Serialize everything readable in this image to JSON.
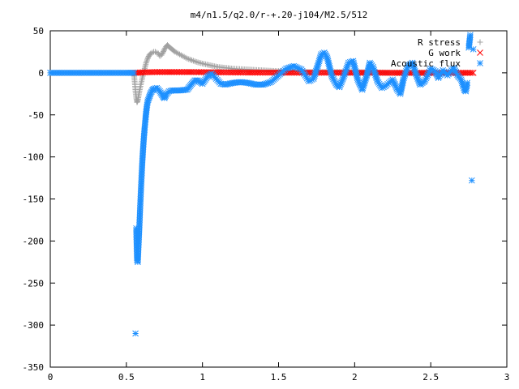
{
  "chart_data": {
    "type": "scatter",
    "title": "m4/n1.5/q2.0/r-+.20-j104/M2.5/512",
    "xlabel": "",
    "ylabel": "",
    "xlim": [
      0,
      3
    ],
    "ylim": [
      -350,
      50
    ],
    "xticks": [
      {
        "value": 0,
        "label": "0"
      },
      {
        "value": 0.5,
        "label": "0.5"
      },
      {
        "value": 1,
        "label": "1"
      },
      {
        "value": 1.5,
        "label": "1.5"
      },
      {
        "value": 2,
        "label": "2"
      },
      {
        "value": 2.5,
        "label": "2.5"
      },
      {
        "value": 3,
        "label": "3"
      }
    ],
    "yticks": [
      {
        "value": 50,
        "label": "50"
      },
      {
        "value": 0,
        "label": "0"
      },
      {
        "value": -50,
        "label": "-50"
      },
      {
        "value": -100,
        "label": "-100"
      },
      {
        "value": -150,
        "label": "-150"
      },
      {
        "value": -200,
        "label": "-200"
      },
      {
        "value": -250,
        "label": "-250"
      },
      {
        "value": -300,
        "label": "-300"
      },
      {
        "value": -350,
        "label": "-350"
      }
    ],
    "grid": false,
    "legend_position": "top-right",
    "series": [
      {
        "name": "R stress",
        "marker": "plus",
        "color": "#a0a0a0",
        "points": [
          [
            0.0,
            0
          ],
          [
            0.1,
            0
          ],
          [
            0.2,
            0
          ],
          [
            0.3,
            0
          ],
          [
            0.4,
            0
          ],
          [
            0.5,
            0
          ],
          [
            0.55,
            0
          ],
          [
            0.56,
            -22
          ],
          [
            0.565,
            -30
          ],
          [
            0.57,
            -35
          ],
          [
            0.575,
            -33
          ],
          [
            0.58,
            -28
          ],
          [
            0.59,
            -18
          ],
          [
            0.6,
            -10
          ],
          [
            0.61,
            -2
          ],
          [
            0.62,
            5
          ],
          [
            0.63,
            12
          ],
          [
            0.64,
            17
          ],
          [
            0.65,
            21
          ],
          [
            0.66,
            23
          ],
          [
            0.67,
            24
          ],
          [
            0.68,
            25
          ],
          [
            0.69,
            25
          ],
          [
            0.7,
            24
          ],
          [
            0.71,
            23
          ],
          [
            0.72,
            20
          ],
          [
            0.73,
            21
          ],
          [
            0.74,
            24
          ],
          [
            0.75,
            28
          ],
          [
            0.76,
            31
          ],
          [
            0.77,
            33
          ],
          [
            0.78,
            31
          ],
          [
            0.8,
            28
          ],
          [
            0.82,
            25
          ],
          [
            0.85,
            22
          ],
          [
            0.88,
            19
          ],
          [
            0.9,
            17
          ],
          [
            0.93,
            15
          ],
          [
            0.96,
            13
          ],
          [
            1.0,
            11
          ],
          [
            1.05,
            9
          ],
          [
            1.1,
            7
          ],
          [
            1.15,
            6
          ],
          [
            1.2,
            5
          ],
          [
            1.3,
            4
          ],
          [
            1.4,
            3
          ],
          [
            1.5,
            2
          ],
          [
            1.6,
            2
          ],
          [
            1.7,
            1
          ],
          [
            1.8,
            1
          ],
          [
            2.0,
            1
          ],
          [
            2.2,
            0
          ],
          [
            2.4,
            0
          ],
          [
            2.6,
            0
          ],
          [
            2.75,
            0
          ]
        ]
      },
      {
        "name": "G work",
        "marker": "cross",
        "color": "#ff0000",
        "points": [
          [
            0.56,
            0
          ],
          [
            0.6,
            0.5
          ],
          [
            0.7,
            1
          ],
          [
            0.8,
            1
          ],
          [
            0.9,
            1
          ],
          [
            1.0,
            0.8
          ],
          [
            1.1,
            0.6
          ],
          [
            1.2,
            0.5
          ],
          [
            1.3,
            0.4
          ],
          [
            1.4,
            0.3
          ],
          [
            1.5,
            0.3
          ],
          [
            1.6,
            0.2
          ],
          [
            1.7,
            0.2
          ],
          [
            1.8,
            0.2
          ],
          [
            1.9,
            0.1
          ],
          [
            2.0,
            0.1
          ],
          [
            2.1,
            0.1
          ],
          [
            2.2,
            0.1
          ],
          [
            2.3,
            0
          ],
          [
            2.4,
            0
          ],
          [
            2.5,
            0
          ],
          [
            2.6,
            0
          ],
          [
            2.7,
            0
          ],
          [
            2.78,
            0
          ]
        ]
      },
      {
        "name": "Acoustic flux",
        "marker": "star",
        "color": "#1e90ff",
        "points": [
          [
            0.0,
            0
          ],
          [
            0.1,
            0
          ],
          [
            0.2,
            0
          ],
          [
            0.3,
            0
          ],
          [
            0.4,
            0
          ],
          [
            0.5,
            0
          ],
          [
            0.55,
            0
          ],
          [
            0.56,
            -310
          ],
          [
            0.565,
            -185
          ],
          [
            0.57,
            -222
          ],
          [
            0.575,
            -225
          ],
          [
            0.58,
            -205
          ],
          [
            0.585,
            -185
          ],
          [
            0.59,
            -163
          ],
          [
            0.595,
            -142
          ],
          [
            0.6,
            -123
          ],
          [
            0.605,
            -105
          ],
          [
            0.61,
            -90
          ],
          [
            0.615,
            -77
          ],
          [
            0.62,
            -66
          ],
          [
            0.625,
            -56
          ],
          [
            0.63,
            -47
          ],
          [
            0.635,
            -40
          ],
          [
            0.64,
            -34
          ],
          [
            0.65,
            -29
          ],
          [
            0.66,
            -24
          ],
          [
            0.67,
            -21
          ],
          [
            0.68,
            -19
          ],
          [
            0.7,
            -18
          ],
          [
            0.72,
            -22
          ],
          [
            0.74,
            -28
          ],
          [
            0.75,
            -30
          ],
          [
            0.76,
            -26
          ],
          [
            0.78,
            -22
          ],
          [
            0.8,
            -21
          ],
          [
            0.85,
            -21
          ],
          [
            0.9,
            -20
          ],
          [
            0.93,
            -13
          ],
          [
            0.95,
            -9
          ],
          [
            0.97,
            -9
          ],
          [
            1.0,
            -13
          ],
          [
            1.03,
            -5
          ],
          [
            1.06,
            -1
          ],
          [
            1.09,
            -7
          ],
          [
            1.12,
            -13
          ],
          [
            1.15,
            -14
          ],
          [
            1.2,
            -12
          ],
          [
            1.25,
            -11
          ],
          [
            1.3,
            -12
          ],
          [
            1.35,
            -14
          ],
          [
            1.4,
            -14
          ],
          [
            1.45,
            -11
          ],
          [
            1.5,
            -3
          ],
          [
            1.55,
            5
          ],
          [
            1.6,
            8
          ],
          [
            1.65,
            4
          ],
          [
            1.7,
            -10
          ],
          [
            1.73,
            -7
          ],
          [
            1.76,
            10
          ],
          [
            1.78,
            22
          ],
          [
            1.8,
            24
          ],
          [
            1.82,
            18
          ],
          [
            1.85,
            -4
          ],
          [
            1.88,
            -14
          ],
          [
            1.9,
            -17
          ],
          [
            1.93,
            -4
          ],
          [
            1.96,
            12
          ],
          [
            1.99,
            14
          ],
          [
            2.02,
            -8
          ],
          [
            2.05,
            -20
          ],
          [
            2.08,
            -3
          ],
          [
            2.1,
            12
          ],
          [
            2.12,
            7
          ],
          [
            2.15,
            -10
          ],
          [
            2.18,
            -18
          ],
          [
            2.2,
            -16
          ],
          [
            2.25,
            -8
          ],
          [
            2.28,
            -20
          ],
          [
            2.3,
            -25
          ],
          [
            2.32,
            -8
          ],
          [
            2.35,
            8
          ],
          [
            2.38,
            12
          ],
          [
            2.4,
            0
          ],
          [
            2.43,
            -14
          ],
          [
            2.46,
            -10
          ],
          [
            2.5,
            5
          ],
          [
            2.53,
            2
          ],
          [
            2.55,
            -6
          ],
          [
            2.58,
            3
          ],
          [
            2.61,
            -3
          ],
          [
            2.65,
            6
          ],
          [
            2.68,
            -4
          ],
          [
            2.7,
            -8
          ],
          [
            2.72,
            -20
          ],
          [
            2.73,
            -22
          ],
          [
            2.74,
            -12
          ],
          [
            2.75,
            30
          ],
          [
            2.76,
            45
          ],
          [
            2.77,
            -128
          ],
          [
            2.78,
            28
          ]
        ]
      }
    ]
  }
}
